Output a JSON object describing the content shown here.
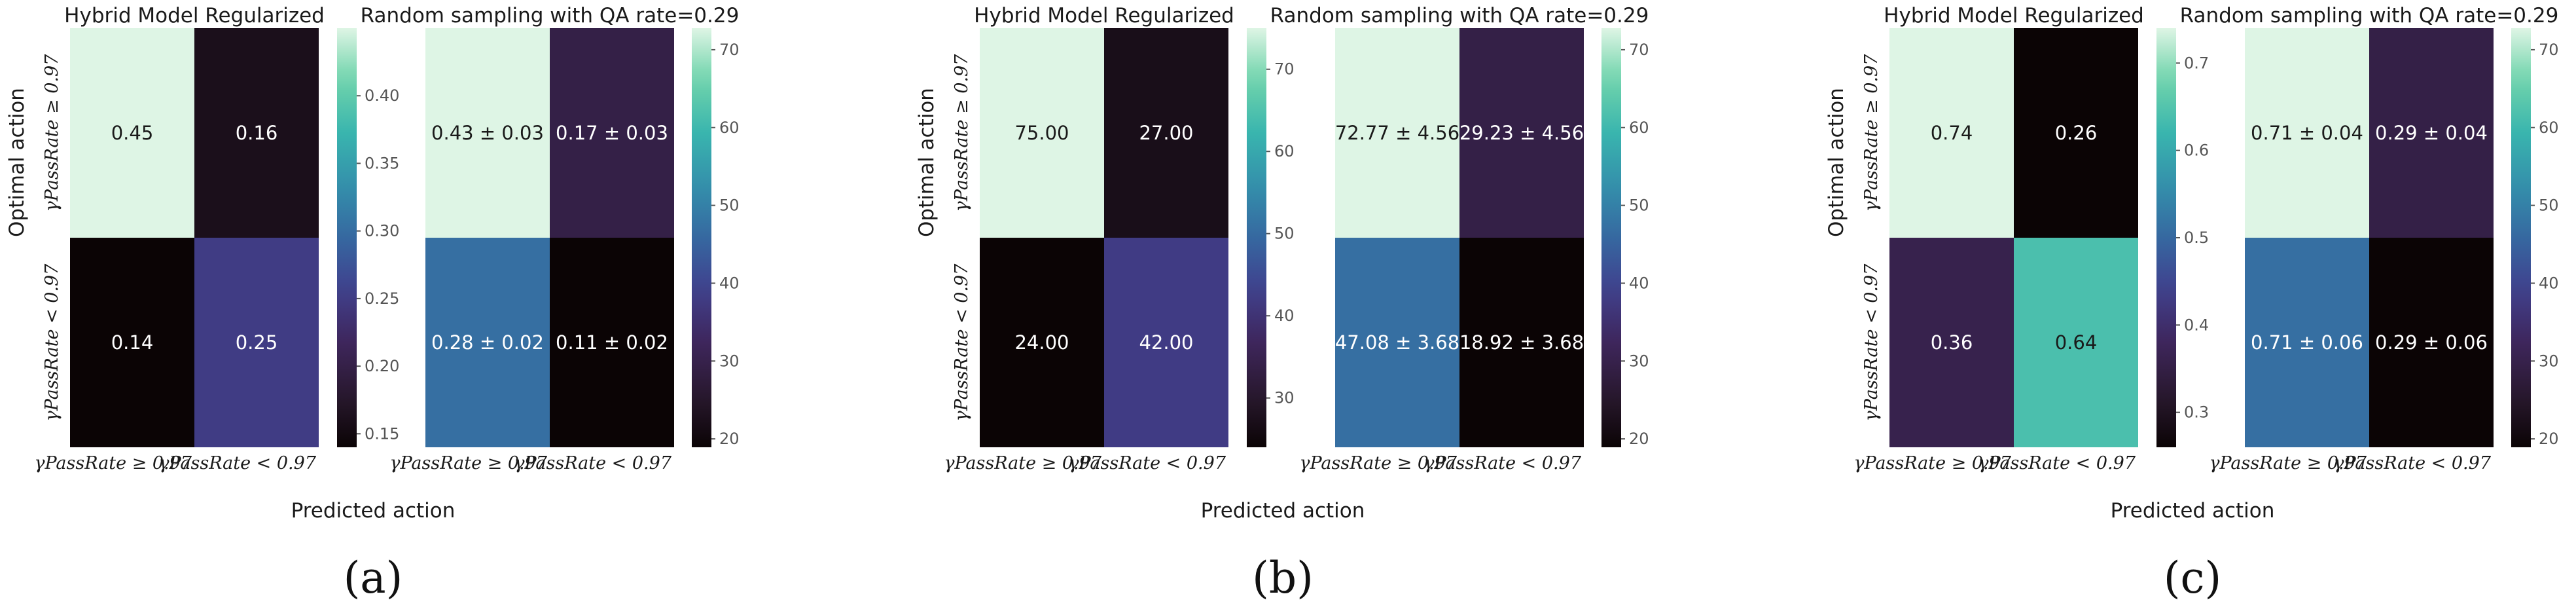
{
  "chart_data": [
    {
      "type": "heatmap",
      "panel": "a",
      "ylabel": "Optimal action",
      "xlabel": "Predicted action",
      "row_labels": [
        "γPassRate ≥ 0.97",
        "γPassRate < 0.97"
      ],
      "col_labels": [
        "γPassRate ≥ 0.97",
        "γPassRate < 0.97"
      ],
      "maps": [
        {
          "title": "Hybrid Model Regularized",
          "values": [
            [
              0.45,
              0.16
            ],
            [
              0.14,
              0.25
            ]
          ],
          "labels": [
            [
              "0.45",
              "0.16"
            ],
            [
              "0.14",
              "0.25"
            ]
          ],
          "colorbar": {
            "range": [
              0.14,
              0.45
            ],
            "ticks": [
              0.15,
              0.2,
              0.25,
              0.3,
              0.35,
              0.4
            ],
            "tick_labels": [
              "0.15",
              "0.20",
              "0.25",
              "0.30",
              "0.35",
              "0.40"
            ]
          }
        },
        {
          "title": "Random sampling with QA rate=0.29",
          "values": [
            [
              0.43,
              0.17
            ],
            [
              0.28,
              0.11
            ]
          ],
          "color_values": [
            [
              72.77,
              29.23
            ],
            [
              47.08,
              18.92
            ]
          ],
          "labels": [
            [
              "0.43 ± 0.03",
              "0.17 ± 0.03"
            ],
            [
              "0.28 ± 0.02",
              "0.11 ± 0.02"
            ]
          ],
          "colorbar": {
            "range": [
              18.92,
              72.77
            ],
            "ticks": [
              20,
              30,
              40,
              50,
              60,
              70
            ],
            "tick_labels": [
              "20",
              "30",
              "40",
              "50",
              "60",
              "70"
            ]
          }
        }
      ]
    },
    {
      "type": "heatmap",
      "panel": "b",
      "ylabel": "Optimal action",
      "xlabel": "Predicted action",
      "row_labels": [
        "γPassRate ≥ 0.97",
        "γPassRate < 0.97"
      ],
      "col_labels": [
        "γPassRate ≥ 0.97",
        "γPassRate < 0.97"
      ],
      "maps": [
        {
          "title": "Hybrid Model Regularized",
          "values": [
            [
              75.0,
              27.0
            ],
            [
              24.0,
              42.0
            ]
          ],
          "labels": [
            [
              "75.00",
              "27.00"
            ],
            [
              "24.00",
              "42.00"
            ]
          ],
          "colorbar": {
            "range": [
              24,
              75
            ],
            "ticks": [
              30,
              40,
              50,
              60,
              70
            ],
            "tick_labels": [
              "30",
              "40",
              "50",
              "60",
              "70"
            ]
          }
        },
        {
          "title": "Random sampling with QA rate=0.29",
          "values": [
            [
              72.77,
              29.23
            ],
            [
              47.08,
              18.92
            ]
          ],
          "labels": [
            [
              "72.77 ± 4.56",
              "29.23 ± 4.56"
            ],
            [
              "47.08 ± 3.68",
              "18.92 ± 3.68"
            ]
          ],
          "colorbar": {
            "range": [
              18.92,
              72.77
            ],
            "ticks": [
              20,
              30,
              40,
              50,
              60,
              70
            ],
            "tick_labels": [
              "20",
              "30",
              "40",
              "50",
              "60",
              "70"
            ]
          }
        }
      ]
    },
    {
      "type": "heatmap",
      "panel": "c",
      "ylabel": "Optimal action",
      "xlabel": "Predicted action",
      "row_labels": [
        "γPassRate ≥ 0.97",
        "γPassRate < 0.97"
      ],
      "col_labels": [
        "γPassRate ≥ 0.97",
        "γPassRate < 0.97"
      ],
      "maps": [
        {
          "title": "Hybrid Model Regularized",
          "values": [
            [
              0.74,
              0.26
            ],
            [
              0.36,
              0.64
            ]
          ],
          "labels": [
            [
              "0.74",
              "0.26"
            ],
            [
              "0.36",
              "0.64"
            ]
          ],
          "colorbar": {
            "range": [
              0.26,
              0.74
            ],
            "ticks": [
              0.3,
              0.4,
              0.5,
              0.6,
              0.7
            ],
            "tick_labels": [
              "0.3",
              "0.4",
              "0.5",
              "0.6",
              "0.7"
            ]
          }
        },
        {
          "title": "Random sampling with QA rate=0.29",
          "values": [
            [
              0.71,
              0.29
            ],
            [
              0.71,
              0.29
            ]
          ],
          "color_values": [
            [
              72.77,
              29.23
            ],
            [
              47.08,
              18.92
            ]
          ],
          "labels": [
            [
              "0.71 ± 0.04",
              "0.29 ± 0.04"
            ],
            [
              "0.71 ± 0.06",
              "0.29 ± 0.06"
            ]
          ],
          "colorbar": {
            "range": [
              18.92,
              72.77
            ],
            "ticks": [
              20,
              30,
              40,
              50,
              60,
              70
            ],
            "tick_labels": [
              "20",
              "30",
              "40",
              "50",
              "60",
              "70"
            ]
          }
        }
      ]
    }
  ],
  "panel_labels": [
    "(a)",
    "(b)",
    "(c)"
  ],
  "colormap": "mako",
  "colors": {
    "text_light": "#ffffff",
    "text_dark": "#1a1a1a",
    "background": "#ffffff"
  }
}
